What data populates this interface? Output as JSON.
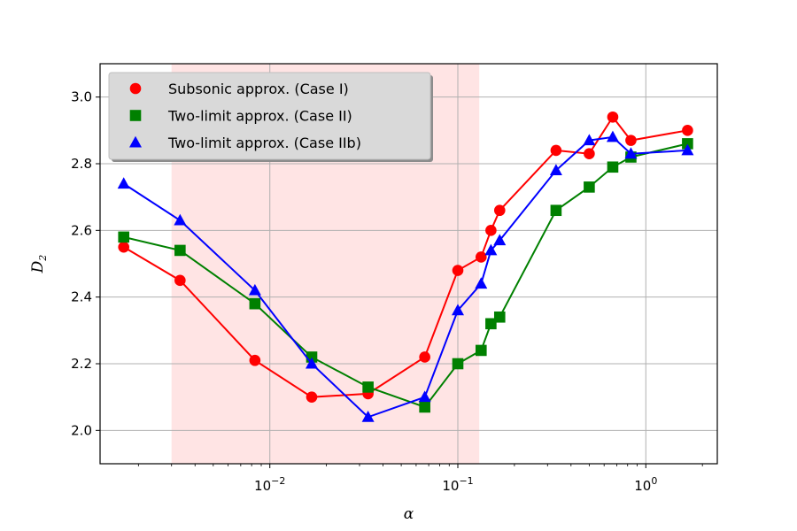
{
  "chart_data": {
    "type": "line",
    "xlabel": "α",
    "ylabel_main": "D",
    "ylabel_sub": "2",
    "xscale": "log",
    "xlim": [
      0.00125,
      2.4
    ],
    "ylim": [
      1.9,
      3.1
    ],
    "grid": true,
    "legend_position": "upper-left",
    "shaded_region": {
      "x_start": 0.003,
      "x_end": 0.13,
      "color": "#ffe4e4"
    },
    "y_ticks": [
      2.0,
      2.2,
      2.4,
      2.6,
      2.8,
      3.0
    ],
    "y_tick_labels": [
      "2.0",
      "2.2",
      "2.4",
      "2.6",
      "2.8",
      "3.0"
    ],
    "x_ticks": [
      {
        "value": 0.01,
        "base": "10",
        "exp": "−2"
      },
      {
        "value": 0.1,
        "base": "10",
        "exp": "−1"
      },
      {
        "value": 1,
        "base": "10",
        "exp": "0"
      }
    ],
    "series": [
      {
        "name": "Subsonic approx. (Case I)",
        "color": "#ff0000",
        "marker": "circle",
        "x": [
          0.00167,
          0.00333,
          0.00833,
          0.0167,
          0.0333,
          0.0667,
          0.1,
          0.133,
          0.15,
          0.167,
          0.333,
          0.5,
          0.667,
          0.833,
          1.667
        ],
        "y": [
          2.55,
          2.45,
          2.21,
          2.1,
          2.11,
          2.22,
          2.48,
          2.52,
          2.6,
          2.66,
          2.84,
          2.83,
          2.94,
          2.87,
          2.9
        ]
      },
      {
        "name": "Two-limit approx. (Case II)",
        "color": "#008000",
        "marker": "square",
        "x": [
          0.00167,
          0.00333,
          0.00833,
          0.0167,
          0.0333,
          0.0667,
          0.1,
          0.133,
          0.15,
          0.167,
          0.333,
          0.5,
          0.667,
          0.833,
          1.667
        ],
        "y": [
          2.58,
          2.54,
          2.38,
          2.22,
          2.13,
          2.07,
          2.2,
          2.24,
          2.32,
          2.34,
          2.66,
          2.73,
          2.79,
          2.82,
          2.86
        ]
      },
      {
        "name": "Two-limit approx. (Case IIb)",
        "color": "#0000ff",
        "marker": "triangle",
        "x": [
          0.00167,
          0.00333,
          0.00833,
          0.0167,
          0.0333,
          0.0667,
          0.1,
          0.133,
          0.15,
          0.167,
          0.333,
          0.5,
          0.667,
          0.833,
          1.667
        ],
        "y": [
          2.74,
          2.63,
          2.42,
          2.2,
          2.04,
          2.1,
          2.36,
          2.44,
          2.54,
          2.57,
          2.78,
          2.87,
          2.88,
          2.83,
          2.84
        ]
      }
    ]
  }
}
